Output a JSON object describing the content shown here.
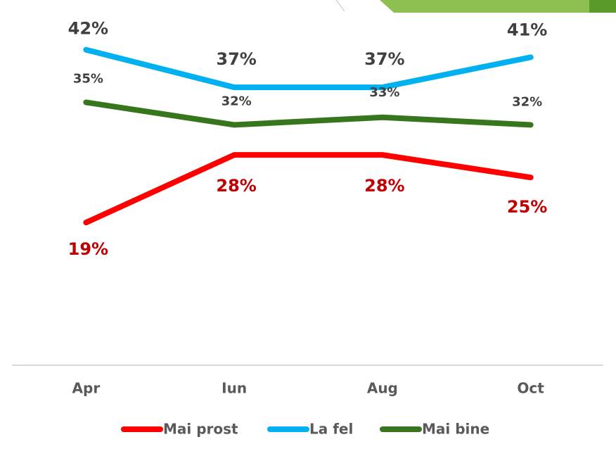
{
  "chart_data": {
    "type": "line",
    "categories": [
      "Apr",
      "Iun",
      "Aug",
      "Oct"
    ],
    "series": [
      {
        "name": "Mai prost",
        "color": "#ff0000",
        "label_color": "#c00000",
        "values": [
          19,
          28,
          28,
          25
        ],
        "value_labels": [
          "19%",
          "28%",
          "28%",
          "25%"
        ]
      },
      {
        "name": "La fel",
        "color": "#00b0f0",
        "label_color": "#404040",
        "values": [
          42,
          37,
          37,
          41
        ],
        "value_labels": [
          "42%",
          "37%",
          "37%",
          "41%"
        ]
      },
      {
        "name": "Mai bine",
        "color": "#38761d",
        "label_color": "#404040",
        "values": [
          35,
          32,
          33,
          32
        ],
        "value_labels": [
          "35%",
          "32%",
          "33%",
          "32%"
        ]
      }
    ],
    "ylim": [
      0,
      46
    ]
  }
}
